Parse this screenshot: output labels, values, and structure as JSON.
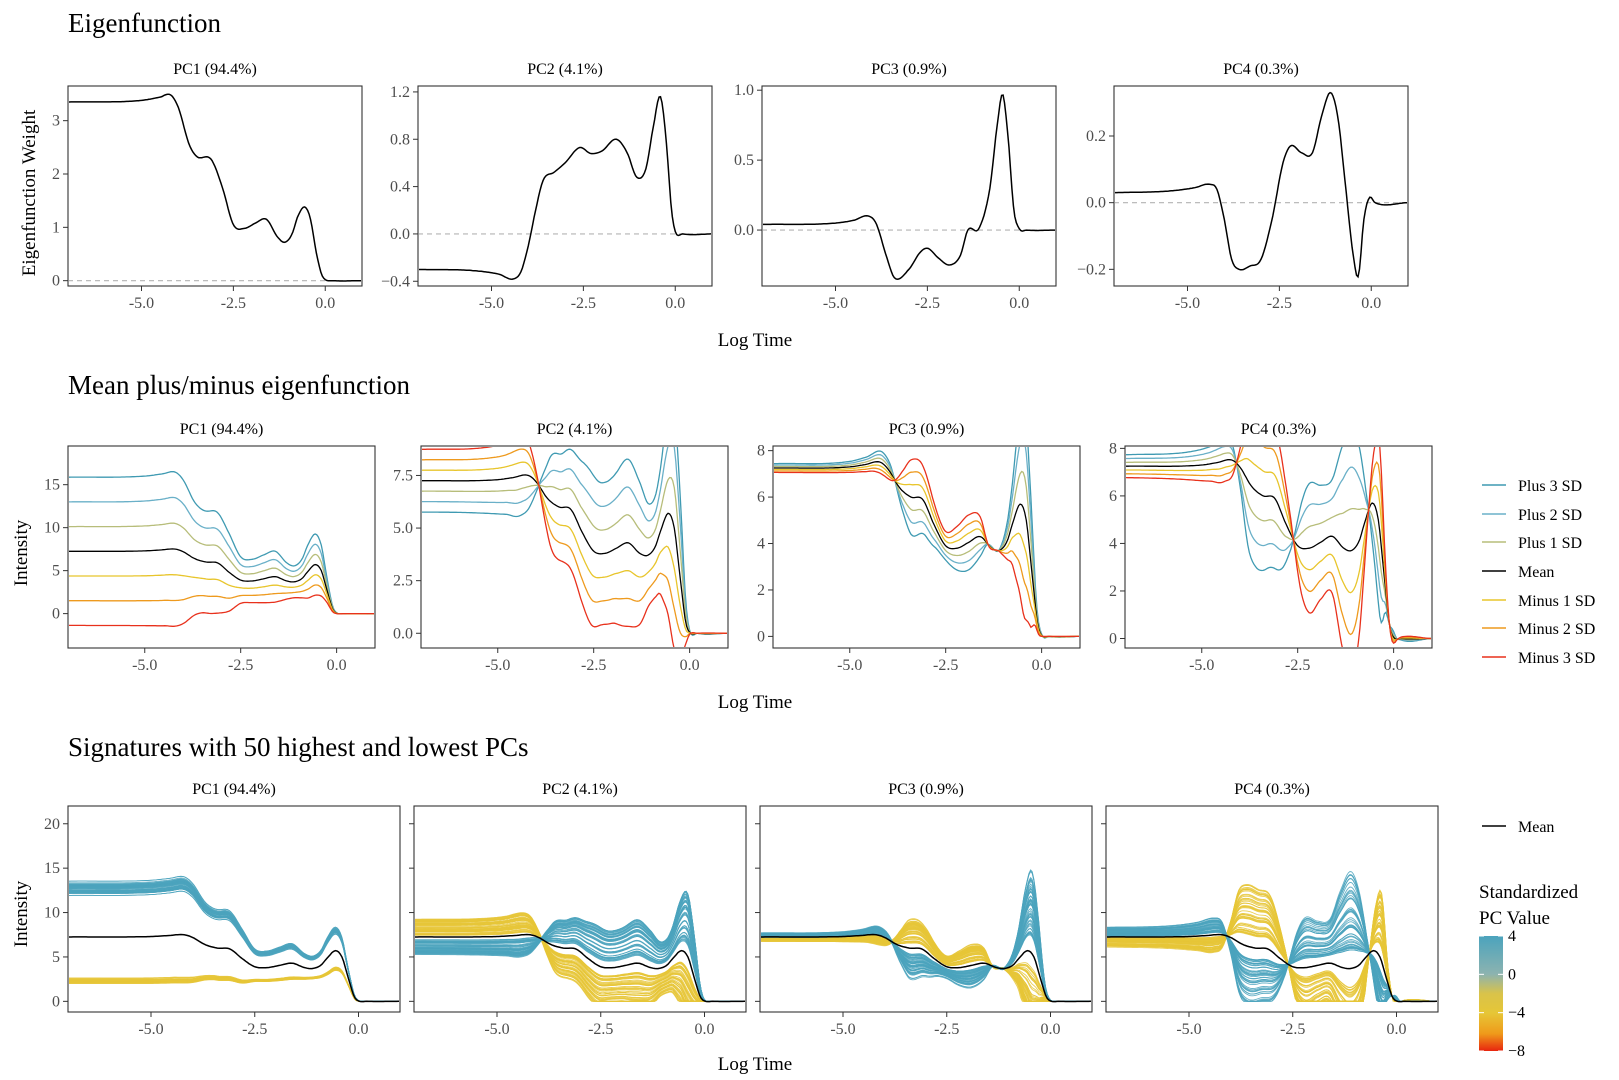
{
  "figure": {
    "xlabel": "Log Time",
    "colors": {
      "plus3": "#3f9ab2",
      "plus2": "#6ab0c8",
      "plus1": "#b7bd7a",
      "mean": "#000000",
      "minus1": "#e8c52c",
      "minus2": "#ee9a1e",
      "minus3": "#e8311c",
      "high": "#4ba3bd",
      "low": "#e6c637",
      "grid": "#b3b3b3"
    }
  },
  "chart_data": [
    {
      "type": "line",
      "title": "Eigenfunction",
      "ylabel": "Eigenfunction Weight",
      "xlabel": "Log Time",
      "panels": [
        {
          "label": "PC1 (94.4%)",
          "xlim": [
            -7,
            1
          ],
          "xticks": [
            "-5.0",
            "-2.5",
            "0.0"
          ],
          "ylim": [
            -0.1,
            3.65
          ],
          "yticks": [
            0,
            1,
            2,
            3
          ],
          "ytick_labels": [
            "0",
            "1",
            "2",
            "3"
          ],
          "x": [
            -7,
            -5,
            -4.5,
            -4.2,
            -4.0,
            -3.7,
            -3.5,
            -3.1,
            -2.8,
            -2.5,
            -2.2,
            -1.9,
            -1.6,
            -1.3,
            -1.1,
            -0.9,
            -0.75,
            -0.55,
            -0.4,
            -0.25,
            -0.1,
            0.0,
            0.2,
            1.0
          ],
          "y": [
            3.35,
            3.38,
            3.44,
            3.48,
            3.25,
            2.55,
            2.33,
            2.27,
            1.75,
            1.05,
            0.98,
            1.08,
            1.15,
            0.82,
            0.72,
            0.88,
            1.2,
            1.38,
            1.15,
            0.55,
            0.12,
            0.02,
            0.0,
            0.0
          ]
        },
        {
          "label": "PC2 (4.1%)",
          "xlim": [
            -7,
            1
          ],
          "xticks": [
            "-5.0",
            "-2.5",
            "0.0"
          ],
          "ylim": [
            -0.44,
            1.25
          ],
          "yticks": [
            -0.4,
            0,
            0.4,
            0.8,
            1.2
          ],
          "ytick_labels": [
            "−0.4",
            "0.0",
            "0.4",
            "0.8",
            "1.2"
          ],
          "x": [
            -7,
            -5.5,
            -4.8,
            -4.4,
            -4.2,
            -4.0,
            -3.8,
            -3.6,
            -3.3,
            -3.0,
            -2.6,
            -2.3,
            -2.0,
            -1.6,
            -1.3,
            -1.05,
            -0.8,
            -0.6,
            -0.4,
            -0.25,
            -0.1,
            0.0,
            0.2,
            1.0
          ],
          "y": [
            -0.3,
            -0.31,
            -0.34,
            -0.38,
            -0.32,
            -0.1,
            0.2,
            0.45,
            0.52,
            0.6,
            0.73,
            0.68,
            0.7,
            0.8,
            0.68,
            0.48,
            0.55,
            0.9,
            1.16,
            0.8,
            0.2,
            0.02,
            0.0,
            0.0
          ]
        },
        {
          "label": "PC3 (0.9%)",
          "xlim": [
            -7,
            1
          ],
          "xticks": [
            "-5.0",
            "-2.5",
            "0.0"
          ],
          "ylim": [
            -0.4,
            1.03
          ],
          "yticks": [
            0,
            0.5,
            1.0
          ],
          "ytick_labels": [
            "0.0",
            "0.5",
            "1.0"
          ],
          "x": [
            -7,
            -5,
            -4.5,
            -4.1,
            -3.9,
            -3.6,
            -3.4,
            -3.0,
            -2.7,
            -2.5,
            -2.2,
            -1.9,
            -1.6,
            -1.4,
            -1.1,
            -0.8,
            -0.6,
            -0.45,
            -0.3,
            -0.15,
            0.0,
            0.2,
            1.0
          ],
          "y": [
            0.04,
            0.05,
            0.07,
            0.1,
            0.05,
            -0.2,
            -0.34,
            -0.28,
            -0.16,
            -0.13,
            -0.2,
            -0.25,
            -0.18,
            0.0,
            0.01,
            0.3,
            0.75,
            0.97,
            0.65,
            0.15,
            0.01,
            0.0,
            0.0
          ]
        },
        {
          "label": "PC4 (0.3%)",
          "xlim": [
            -7,
            1
          ],
          "xticks": [
            "-5.0",
            "-2.5",
            "0.0"
          ],
          "ylim": [
            -0.25,
            0.35
          ],
          "yticks": [
            -0.2,
            0,
            0.2
          ],
          "ytick_labels": [
            "−0.2",
            "0.0",
            "0.2"
          ],
          "x": [
            -7,
            -5.5,
            -4.8,
            -4.4,
            -4.2,
            -4.0,
            -3.8,
            -3.6,
            -3.3,
            -3.0,
            -2.7,
            -2.4,
            -2.2,
            -1.9,
            -1.6,
            -1.35,
            -1.1,
            -0.9,
            -0.7,
            -0.5,
            -0.35,
            -0.2,
            -0.05,
            0.1,
            1.0
          ],
          "y": [
            0.03,
            0.035,
            0.045,
            0.055,
            0.04,
            -0.05,
            -0.17,
            -0.2,
            -0.19,
            -0.17,
            -0.05,
            0.12,
            0.17,
            0.15,
            0.15,
            0.26,
            0.33,
            0.25,
            0.05,
            -0.15,
            -0.22,
            -0.05,
            0.015,
            0.0,
            0.0
          ]
        }
      ]
    },
    {
      "type": "line",
      "title": "Mean plus/minus eigenfunction",
      "ylabel": "Intensity",
      "xlabel": "Log Time",
      "legend": {
        "position": "right",
        "entries": [
          "Plus 3 SD",
          "Plus 2 SD",
          "Plus 1 SD",
          "Mean",
          "Minus 1 SD",
          "Minus 2 SD",
          "Minus 3 SD"
        ]
      },
      "mean": {
        "x": [
          -7,
          -5,
          -4.6,
          -4.2,
          -4.0,
          -3.7,
          -3.4,
          -3.1,
          -2.8,
          -2.5,
          -2.2,
          -1.9,
          -1.6,
          -1.3,
          -1.1,
          -0.9,
          -0.75,
          -0.55,
          -0.4,
          -0.25,
          -0.1,
          0.0,
          0.2,
          1.0
        ],
        "y": [
          7.25,
          7.3,
          7.4,
          7.5,
          7.2,
          6.4,
          6.0,
          5.9,
          4.8,
          3.9,
          3.8,
          4.05,
          4.3,
          3.8,
          3.7,
          4.1,
          4.9,
          5.7,
          5.0,
          2.7,
          0.5,
          0.05,
          0.0,
          0.0
        ]
      },
      "panels": [
        {
          "label": "PC1 (94.4%)",
          "xlim": [
            -7,
            1
          ],
          "xticks": [
            "-5.0",
            "-2.5",
            "0.0"
          ],
          "ylim": [
            -4,
            19.5
          ],
          "yticks": [
            0,
            5,
            10,
            15
          ],
          "ytick_labels": [
            "0",
            "5",
            "10",
            "15"
          ],
          "sd_scale": 3.0
        },
        {
          "label": "PC2 (4.1%)",
          "xlim": [
            -7,
            1
          ],
          "xticks": [
            "-5.0",
            "-2.5",
            "0.0"
          ],
          "ylim": [
            -0.7,
            8.9
          ],
          "yticks": [
            0,
            2.5,
            5,
            7.5
          ],
          "ytick_labels": [
            "0.0",
            "2.5",
            "5.0",
            "7.5"
          ],
          "sd_scale": 2.4
        },
        {
          "label": "PC3 (0.9%)",
          "xlim": [
            -7,
            1
          ],
          "xticks": [
            "-5.0",
            "-2.5",
            "0.0"
          ],
          "ylim": [
            -0.5,
            8.2
          ],
          "yticks": [
            0,
            2,
            4,
            6,
            8
          ],
          "ytick_labels": [
            "0",
            "2",
            "4",
            "6",
            "8"
          ],
          "sd_scale": 1.9
        },
        {
          "label": "PC4 (0.3%)",
          "xlim": [
            -7,
            1
          ],
          "xticks": [
            "-5.0",
            "-2.5",
            "0.0"
          ],
          "ylim": [
            -0.4,
            8.1
          ],
          "yticks": [
            0,
            2,
            4,
            6,
            8
          ],
          "ytick_labels": [
            "0",
            "2",
            "4",
            "6",
            "8"
          ],
          "sd_scale": 2.2
        }
      ]
    },
    {
      "type": "line",
      "title": "Signatures with 50 highest and lowest PCs",
      "ylabel": "Intensity",
      "xlabel": "Log Time",
      "legend": {
        "position": "right",
        "line_entry": "Mean",
        "colorbar_title": [
          "Standardized",
          "PC Value"
        ],
        "colorbar_ticks": [
          "4",
          "0",
          "−4",
          "−8"
        ],
        "colorbar_values": [
          4,
          0,
          -4,
          -8
        ]
      },
      "n_curves_per_group": 50,
      "panels": [
        {
          "label": "PC1 (94.4%)",
          "xlim": [
            -7,
            1
          ],
          "xticks": [
            "-5.0",
            "-2.5",
            "0.0"
          ],
          "ylim": [
            -1.2,
            22
          ],
          "yticks": [
            0,
            5,
            10,
            15,
            20
          ],
          "ytick_labels": [
            "0",
            "5",
            "10",
            "15",
            "20"
          ],
          "eig_scale": 3.2
        },
        {
          "label": "PC2 (4.1%)",
          "xlim": [
            -7,
            1
          ],
          "xticks": [
            "-5.0",
            "-2.5",
            "0.0"
          ],
          "ylim": [
            -1.2,
            22
          ],
          "yticks": [
            0,
            5,
            10,
            15,
            20
          ],
          "ytick_labels": [],
          "eig_scale": 5.5
        },
        {
          "label": "PC3 (0.9%)",
          "xlim": [
            -7,
            1
          ],
          "xticks": [
            "-5.0",
            "-2.5",
            "0.0"
          ],
          "ylim": [
            -1.2,
            22
          ],
          "yticks": [
            0,
            5,
            10,
            15,
            20
          ],
          "ytick_labels": [],
          "eig_scale": 7.0
        },
        {
          "label": "PC4 (0.3%)",
          "xlim": [
            -7,
            1
          ],
          "xticks": [
            "-5.0",
            "-2.5",
            "0.0"
          ],
          "ylim": [
            -1.2,
            22
          ],
          "yticks": [
            0,
            5,
            10,
            15,
            20
          ],
          "ytick_labels": [],
          "eig_scale": 8.5
        }
      ]
    }
  ]
}
